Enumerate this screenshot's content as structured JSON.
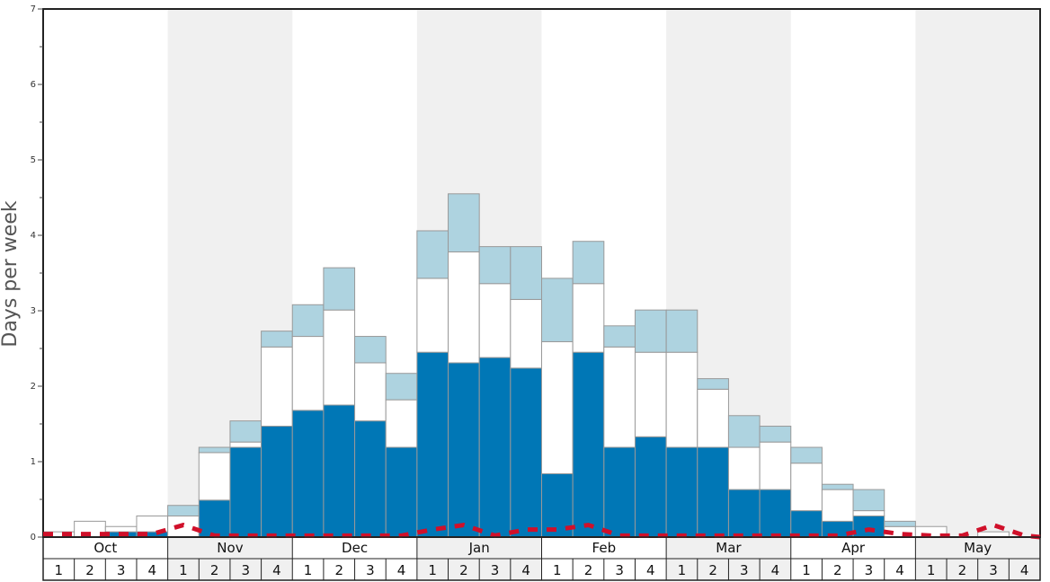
{
  "chart_data": {
    "type": "bar",
    "stacked": true,
    "ylabel": "Days per week",
    "xlabel": "",
    "title": "",
    "ylim": [
      0,
      7
    ],
    "y_ticks": [
      "0",
      "1",
      "2",
      "3",
      "4",
      "5",
      "6",
      "7"
    ],
    "months": [
      "Oct",
      "Nov",
      "Dec",
      "Jan",
      "Feb",
      "Mar",
      "Apr",
      "May"
    ],
    "week_labels": [
      "1",
      "2",
      "3",
      "4"
    ],
    "grid": false,
    "legend": "none",
    "categories": [
      "Oct 1",
      "Oct 2",
      "Oct 3",
      "Oct 4",
      "Nov 1",
      "Nov 2",
      "Nov 3",
      "Nov 4",
      "Dec 1",
      "Dec 2",
      "Dec 3",
      "Dec 4",
      "Jan 1",
      "Jan 2",
      "Jan 3",
      "Jan 4",
      "Feb 1",
      "Feb 2",
      "Feb 3",
      "Feb 4",
      "Mar 1",
      "Mar 2",
      "Mar 3",
      "Mar 4",
      "Apr 1",
      "Apr 2",
      "Apr 3",
      "Apr 4",
      "May 1",
      "May 2",
      "May 3",
      "May 4"
    ],
    "series": [
      {
        "color": "#0077b6",
        "values": [
          0.0,
          0.0,
          0.07,
          0.07,
          0.0,
          0.49,
          1.19,
          1.47,
          1.68,
          1.75,
          1.54,
          1.19,
          2.45,
          2.31,
          2.38,
          2.24,
          0.84,
          2.45,
          1.19,
          1.33,
          1.19,
          1.19,
          0.63,
          0.63,
          0.35,
          0.21,
          0.28,
          0.0,
          0.0,
          0.0,
          0.0,
          0.0
        ]
      },
      {
        "color": "#ffffff",
        "values": [
          0.07,
          0.21,
          0.07,
          0.21,
          0.28,
          0.63,
          0.07,
          1.05,
          0.98,
          1.26,
          0.77,
          0.63,
          0.98,
          1.47,
          0.98,
          0.91,
          1.75,
          0.91,
          1.33,
          1.12,
          1.26,
          0.77,
          0.56,
          0.63,
          0.63,
          0.42,
          0.07,
          0.14,
          0.14,
          0.0,
          0.07,
          0.0
        ]
      },
      {
        "color": "#aed3e0",
        "values": [
          0.0,
          0.0,
          0.0,
          0.0,
          0.14,
          0.07,
          0.28,
          0.21,
          0.42,
          0.56,
          0.35,
          0.35,
          0.63,
          0.77,
          0.49,
          0.7,
          0.84,
          0.56,
          0.28,
          0.56,
          0.56,
          0.14,
          0.42,
          0.21,
          0.21,
          0.07,
          0.28,
          0.07,
          0.0,
          0.0,
          0.0,
          0.0
        ]
      }
    ],
    "line": {
      "color": "#d0102a",
      "style": "dashed",
      "values": [
        0.04,
        0.04,
        0.04,
        0.04,
        0.16,
        0.02,
        0.02,
        0.02,
        0.02,
        0.02,
        0.02,
        0.02,
        0.1,
        0.16,
        0.02,
        0.1,
        0.1,
        0.16,
        0.02,
        0.02,
        0.02,
        0.02,
        0.02,
        0.02,
        0.02,
        0.02,
        0.1,
        0.04,
        0.02,
        0.02,
        0.16,
        0.02
      ]
    },
    "colors": {
      "shade": "#f0f0f0",
      "border": "#222222",
      "bar_outline": "#999999"
    }
  }
}
